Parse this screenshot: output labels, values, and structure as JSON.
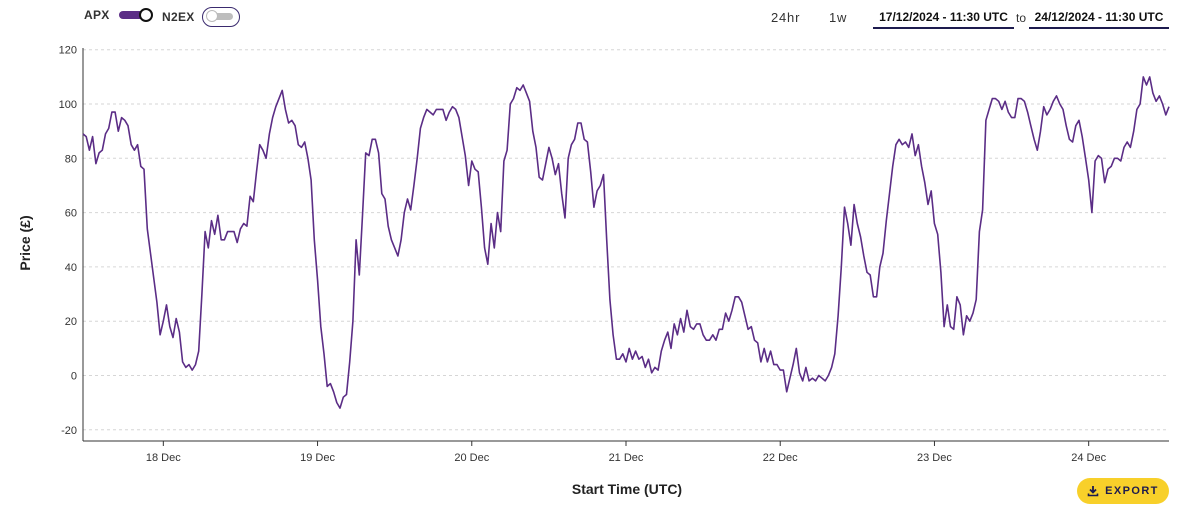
{
  "controls": {
    "series_toggles": [
      {
        "label": "APX",
        "on": true
      },
      {
        "label": "N2EX",
        "on": false
      }
    ],
    "range_buttons": [
      "24hr",
      "1w"
    ],
    "date_from": "17/12/2024 - 11:30 UTC",
    "date_sep": "to",
    "date_to": "24/12/2024 - 11:30 UTC",
    "export_label": "EXPORT",
    "export_icon": "download-icon"
  },
  "colors": {
    "series_line": "#5b2d86",
    "toggle_on": "#5b2d86",
    "export_bg": "#f8d02a",
    "date_underline": "#1d1b4e"
  },
  "chart_data": {
    "type": "line",
    "title": "",
    "xlabel": "Start Time (UTC)",
    "ylabel": "Price (£)",
    "ylim": [
      -25,
      120
    ],
    "yticks": [
      -20,
      0,
      20,
      40,
      60,
      80,
      100,
      120
    ],
    "x_start": "17/12/2024 - 11:30",
    "x_step_hours": 0.5,
    "xticks": [
      {
        "label": "18 Dec",
        "hours_from_start": 12.5
      },
      {
        "label": "19 Dec",
        "hours_from_start": 36.5
      },
      {
        "label": "20 Dec",
        "hours_from_start": 60.5
      },
      {
        "label": "21 Dec",
        "hours_from_start": 84.5
      },
      {
        "label": "22 Dec",
        "hours_from_start": 108.5
      },
      {
        "label": "23 Dec",
        "hours_from_start": 132.5
      },
      {
        "label": "24 Dec",
        "hours_from_start": 156.5
      }
    ],
    "grid": true,
    "series": [
      {
        "name": "APX",
        "values": [
          89,
          88,
          83,
          88,
          78,
          82,
          83,
          89,
          91,
          97,
          97,
          90,
          95,
          94,
          92,
          85,
          83,
          85,
          77,
          76,
          54,
          45,
          36,
          27,
          15,
          20,
          26,
          18,
          14,
          21,
          16,
          5,
          3,
          4,
          2,
          4,
          9,
          30,
          53,
          47,
          57,
          52,
          59,
          50,
          50,
          53,
          53,
          53,
          49,
          54,
          56,
          55,
          66,
          64,
          75,
          85,
          83,
          80,
          89,
          95,
          99,
          102,
          105,
          98,
          93,
          94,
          92,
          85,
          84,
          86,
          80,
          72,
          50,
          35,
          18,
          8,
          -4,
          -3,
          -6,
          -10,
          -12,
          -8,
          -7,
          5,
          20,
          50,
          37,
          59,
          82,
          81,
          87,
          87,
          82,
          67,
          65,
          55,
          50,
          47,
          44,
          50,
          60,
          65,
          61,
          70,
          80,
          91,
          95,
          98,
          97,
          96,
          98,
          98,
          98,
          94,
          97,
          99,
          98,
          95,
          88,
          81,
          70,
          79,
          76,
          75,
          62,
          47,
          41,
          56,
          47,
          60,
          53,
          79,
          83,
          100,
          102,
          106,
          105,
          107,
          104,
          101,
          90,
          84,
          73,
          72,
          78,
          84,
          80,
          74,
          78,
          67,
          58,
          80,
          85,
          87,
          93,
          93,
          87,
          86,
          75,
          62,
          68,
          70,
          74,
          50,
          28,
          15,
          6,
          6,
          8,
          5,
          10,
          6,
          9,
          6,
          7,
          3,
          6,
          1,
          3,
          2,
          9,
          13,
          16,
          10,
          19,
          15,
          21,
          16,
          24,
          18,
          17,
          19,
          19,
          15,
          13,
          13,
          15,
          13,
          17,
          17,
          23,
          20,
          24,
          29,
          29,
          27,
          22,
          17,
          18,
          13,
          12,
          5,
          10,
          5,
          9,
          4,
          4,
          2,
          2,
          -6,
          -1,
          4,
          10,
          1,
          -2,
          3,
          -2,
          -1,
          -2,
          0,
          -1,
          -2,
          0,
          3,
          8,
          22,
          40,
          62,
          56,
          48,
          63,
          56,
          51,
          44,
          38,
          37,
          29,
          29,
          40,
          45,
          57,
          67,
          77,
          85,
          87,
          85,
          86,
          84,
          89,
          81,
          85,
          77,
          71,
          63,
          68,
          56,
          52,
          38,
          18,
          26,
          18,
          17,
          29,
          26,
          15,
          22,
          20,
          23,
          28,
          53,
          61,
          94,
          98,
          102,
          102,
          101,
          98,
          101,
          97,
          95,
          95,
          102,
          102,
          101,
          97,
          92,
          87,
          83,
          90,
          99,
          96,
          98,
          101,
          103,
          100,
          98,
          92,
          87,
          86,
          92,
          94,
          88,
          80,
          72,
          60,
          79,
          81,
          80,
          71,
          76,
          77,
          80,
          80,
          79,
          84,
          86,
          84,
          90,
          98,
          100,
          110,
          107,
          110,
          104,
          101,
          103,
          100,
          96,
          99
        ]
      }
    ]
  }
}
